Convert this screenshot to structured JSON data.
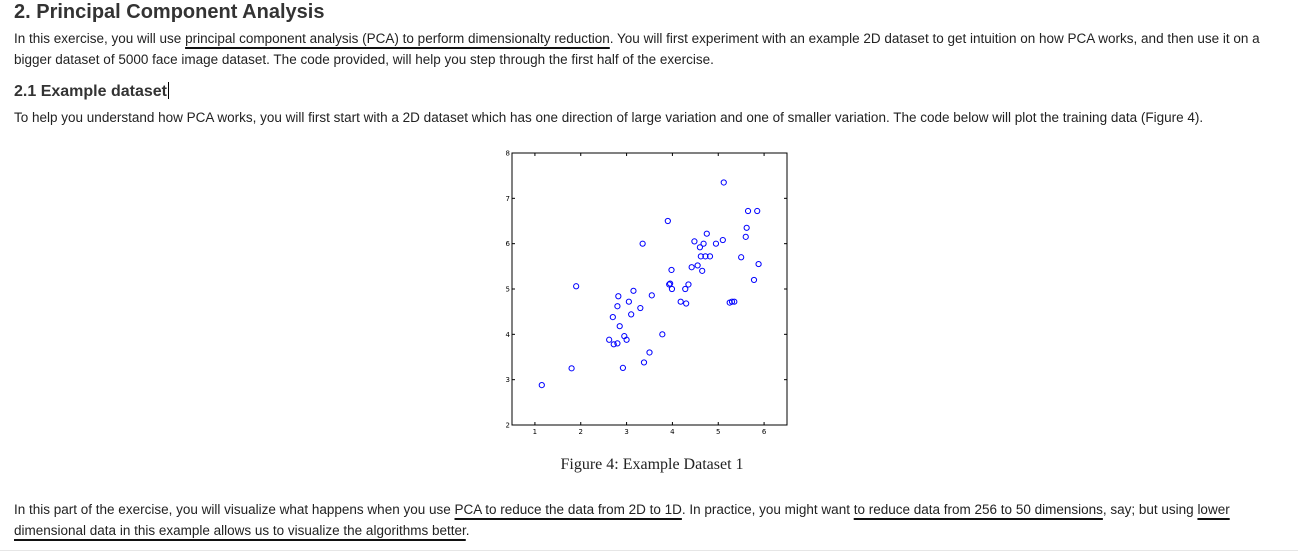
{
  "section": {
    "title": "2. Principal Component Analysis",
    "intro": {
      "t1": "In this exercise, you will use ",
      "link1": "principal component analysis (PCA) to perform dimensionalty reduction",
      "t2": ". You will first experiment with an example 2D dataset to get intuition on how PCA works, and then use it on a bigger dataset of 5000 face image dataset. The code provided, will help you step through the first half of the exercise."
    }
  },
  "subsection": {
    "title": "2.1 Example dataset",
    "text": "To help you understand how PCA works, you will first start with a 2D dataset which has one direction of large variation and one of smaller variation. The code below will plot the training data (Figure 4)."
  },
  "figure": {
    "caption": "Figure 4: Example Dataset 1"
  },
  "chart_data": {
    "type": "scatter",
    "title": "",
    "xlabel": "",
    "ylabel": "",
    "xlim": [
      0.5,
      6.5
    ],
    "ylim": [
      2,
      8
    ],
    "x_ticks": [
      "1",
      "2",
      "3",
      "4",
      "5",
      "6"
    ],
    "y_ticks": [
      "2",
      "3",
      "4",
      "5",
      "6",
      "7",
      "8"
    ],
    "marker": "circle-open",
    "marker_color": "#0000ff",
    "grid": false,
    "points": [
      [
        1.15,
        2.88
      ],
      [
        1.8,
        3.25
      ],
      [
        1.9,
        5.06
      ],
      [
        2.62,
        3.88
      ],
      [
        2.7,
        4.38
      ],
      [
        2.72,
        3.78
      ],
      [
        2.8,
        3.8
      ],
      [
        2.8,
        4.62
      ],
      [
        2.82,
        4.84
      ],
      [
        2.85,
        4.18
      ],
      [
        2.92,
        3.26
      ],
      [
        2.95,
        3.96
      ],
      [
        3.0,
        3.88
      ],
      [
        3.05,
        4.72
      ],
      [
        3.1,
        4.44
      ],
      [
        3.15,
        4.96
      ],
      [
        3.3,
        4.58
      ],
      [
        3.35,
        6.0
      ],
      [
        3.38,
        3.38
      ],
      [
        3.5,
        3.6
      ],
      [
        3.55,
        4.86
      ],
      [
        3.78,
        4.0
      ],
      [
        3.9,
        6.5
      ],
      [
        3.93,
        5.1
      ],
      [
        3.95,
        5.12
      ],
      [
        3.98,
        5.42
      ],
      [
        3.99,
        5.0
      ],
      [
        4.18,
        4.72
      ],
      [
        4.28,
        5.0
      ],
      [
        4.3,
        4.68
      ],
      [
        4.35,
        5.1
      ],
      [
        4.42,
        5.48
      ],
      [
        4.48,
        6.05
      ],
      [
        4.55,
        5.52
      ],
      [
        4.6,
        5.92
      ],
      [
        4.62,
        5.72
      ],
      [
        4.65,
        5.4
      ],
      [
        4.68,
        6.0
      ],
      [
        4.72,
        5.72
      ],
      [
        4.75,
        6.22
      ],
      [
        4.82,
        5.72
      ],
      [
        4.95,
        6.0
      ],
      [
        5.1,
        6.08
      ],
      [
        5.12,
        7.35
      ],
      [
        5.25,
        4.7
      ],
      [
        5.3,
        4.72
      ],
      [
        5.35,
        4.72
      ],
      [
        5.5,
        5.7
      ],
      [
        5.6,
        6.15
      ],
      [
        5.62,
        6.35
      ],
      [
        5.65,
        6.72
      ],
      [
        5.78,
        5.2
      ],
      [
        5.85,
        6.72
      ],
      [
        5.88,
        5.55
      ]
    ]
  },
  "summary": {
    "t1": "In this part of the exercise, you will visualize what happens when you use ",
    "link1": "PCA to reduce the data from 2D to 1D",
    "t2": ". In practice, you might want ",
    "link2": "to reduce data from 256 to 50 dimensions",
    "t3": ", say; but using ",
    "link3": "lower dimensional data in this example allows us to visualize the algorithms better",
    "t4": "."
  }
}
